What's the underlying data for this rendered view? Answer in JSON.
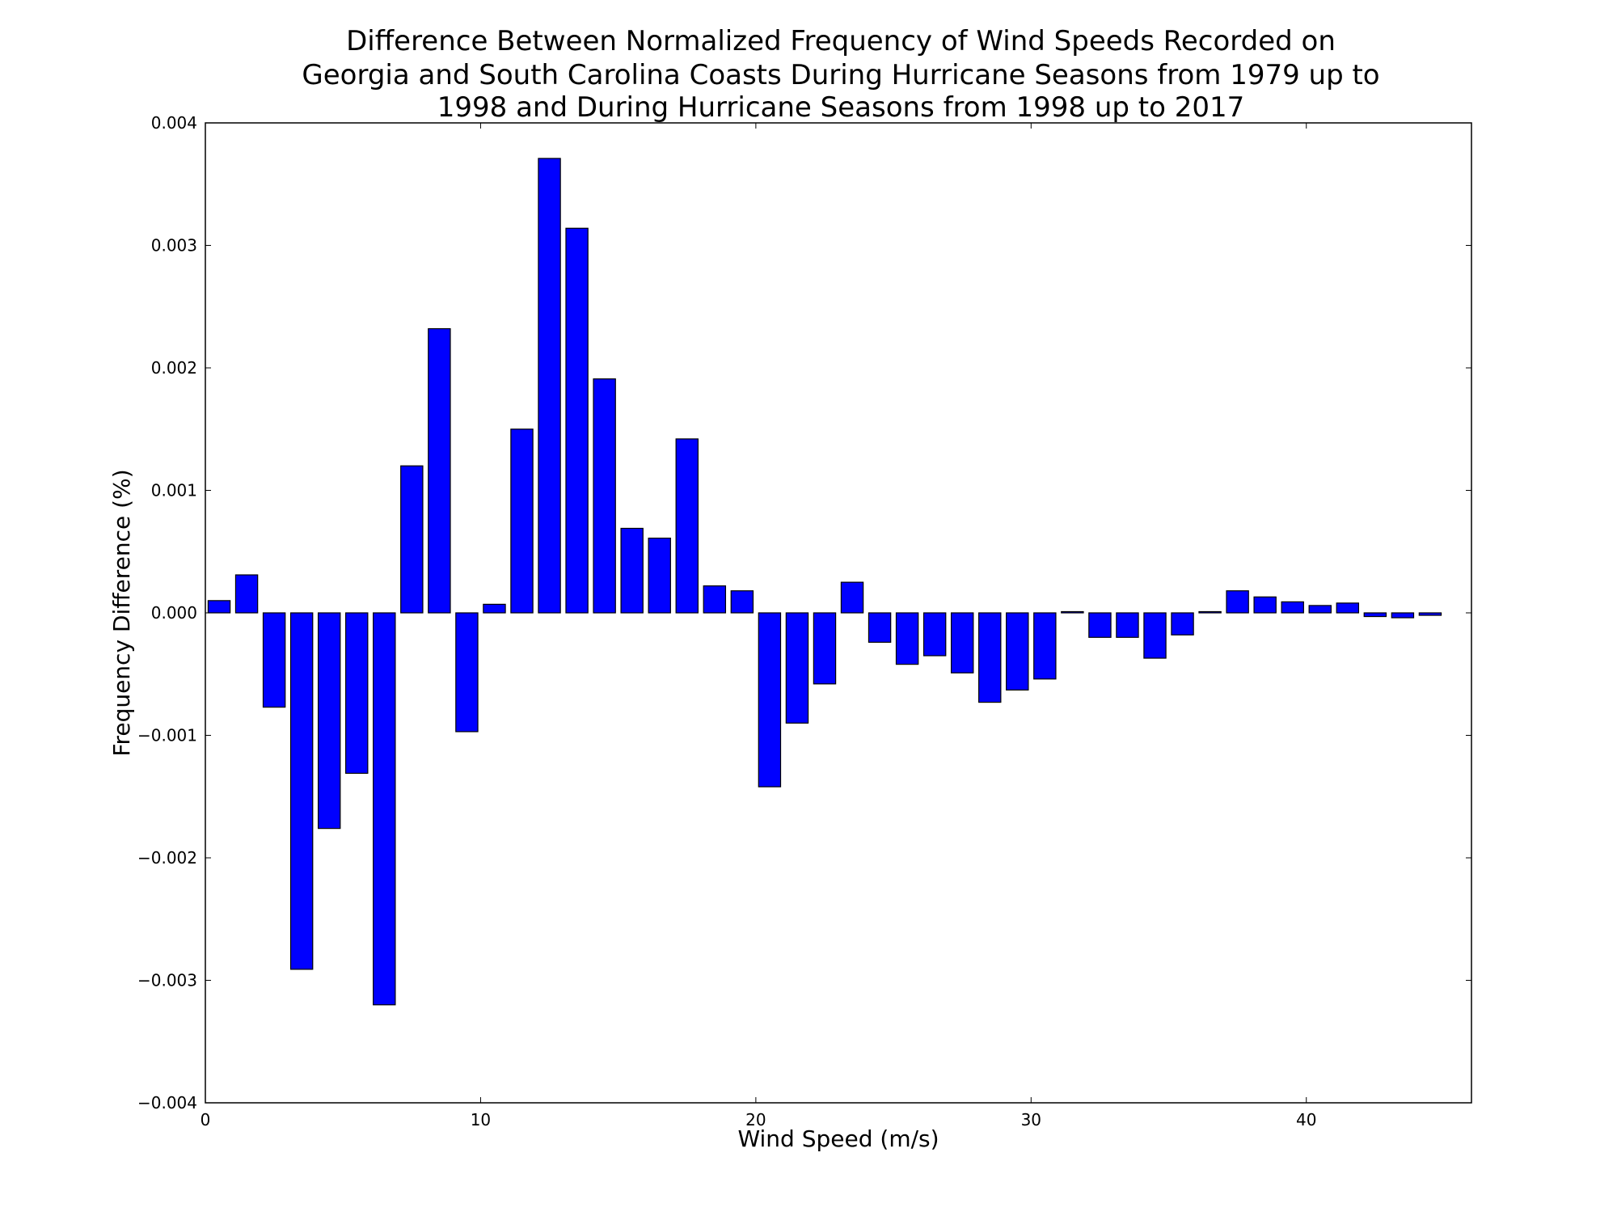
{
  "chart_data": {
    "type": "bar",
    "title_lines": [
      "Difference Between Normalized Frequency of Wind Speeds Recorded on",
      "Georgia and South Carolina Coasts During Hurricane Seasons from 1979 up to",
      "1998 and During Hurricane Seasons from 1998 up to 2017"
    ],
    "xlabel": "Wind Speed (m/s)",
    "ylabel": "Frequency Difference (%)",
    "xlim": [
      0,
      46
    ],
    "ylim": [
      -0.004,
      0.004
    ],
    "x_ticks": [
      0,
      10,
      20,
      30,
      40
    ],
    "x_tick_labels": [
      "0",
      "10",
      "20",
      "30",
      "40"
    ],
    "y_ticks": [
      -0.004,
      -0.003,
      -0.002,
      -0.001,
      0,
      0.001,
      0.002,
      0.003,
      0.004
    ],
    "y_tick_labels": [
      "−0.004",
      "−0.003",
      "−0.002",
      "−0.001",
      "0.000",
      "0.001",
      "0.002",
      "0.003",
      "0.004"
    ],
    "grid": false,
    "bar_width": 0.8,
    "bar_color": "#0000ff",
    "edge_color": "#000000",
    "x": [
      0,
      1,
      2,
      3,
      4,
      5,
      6,
      7,
      8,
      9,
      10,
      11,
      12,
      13,
      14,
      15,
      16,
      17,
      18,
      19,
      20,
      21,
      22,
      23,
      24,
      25,
      26,
      27,
      28,
      29,
      30,
      31,
      32,
      33,
      34,
      35,
      36,
      37,
      38,
      39,
      40,
      41,
      42,
      43,
      44
    ],
    "values": [
      0.0001,
      0.00031,
      -0.00077,
      -0.00291,
      -0.00176,
      -0.00131,
      -0.0032,
      0.0012,
      0.00232,
      -0.00097,
      7e-05,
      0.0015,
      0.00371,
      0.00314,
      0.00191,
      0.00069,
      0.00061,
      0.00142,
      0.00022,
      0.00018,
      -0.00142,
      -0.0009,
      -0.00058,
      0.00025,
      -0.00024,
      -0.00042,
      -0.00035,
      -0.00049,
      -0.00073,
      -0.00063,
      -0.00054,
      1e-05,
      -0.0002,
      -0.0002,
      -0.00037,
      -0.00018,
      1e-05,
      0.00018,
      0.00013,
      9e-05,
      6e-05,
      8e-05,
      -3e-05,
      -4e-05,
      -2e-05
    ]
  }
}
